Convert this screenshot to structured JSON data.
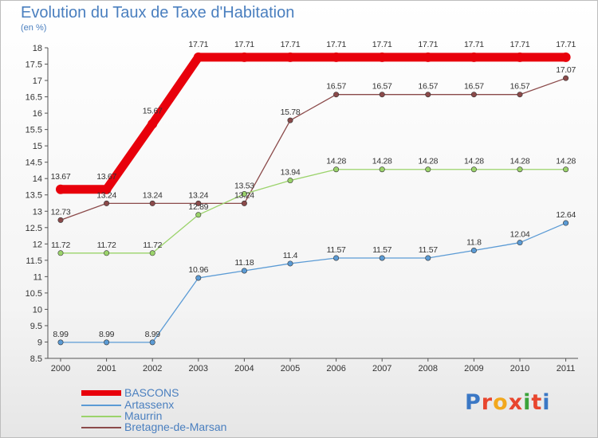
{
  "title": "Evolution du Taux de Taxe d'Habitation",
  "subtitle": "(en %)",
  "logo": {
    "text": "Proxiti",
    "colors": [
      "#3b78c5",
      "#e8462e",
      "#f2a81d",
      "#e8462e",
      "#3aa33a",
      "#e8462e",
      "#3b78c5"
    ]
  },
  "chart_data": {
    "type": "line",
    "x": [
      "2000",
      "2001",
      "2002",
      "2003",
      "2004",
      "2005",
      "2006",
      "2007",
      "2008",
      "2009",
      "2010",
      "2011"
    ],
    "ylim": [
      8.5,
      18
    ],
    "yticks": [
      "8.5",
      "9",
      "9.5",
      "10",
      "10.5",
      "11",
      "11.5",
      "12",
      "12.5",
      "13",
      "13.5",
      "14",
      "14.5",
      "15",
      "15.5",
      "16",
      "16.5",
      "17",
      "17.5",
      "18"
    ],
    "grid": false,
    "legend_position": "bottom-left",
    "series": [
      {
        "name": "BASCONS",
        "color": "#e8000b",
        "values": [
          13.67,
          13.67,
          15.67,
          17.71,
          17.71,
          17.71,
          17.71,
          17.71,
          17.71,
          17.71,
          17.71,
          17.71
        ],
        "labels": [
          "13.67",
          "13.67",
          "15.67",
          "17.71",
          "17.71",
          "17.71",
          "17.71",
          "17.71",
          "17.71",
          "17.71",
          "17.71",
          "17.71"
        ]
      },
      {
        "name": "Artassenx",
        "color": "#5b9bd5",
        "values": [
          8.99,
          8.99,
          8.99,
          10.96,
          11.18,
          11.4,
          11.57,
          11.57,
          11.57,
          11.8,
          12.04,
          12.64
        ],
        "labels": [
          "8.99",
          "8.99",
          "8.99",
          "10.96",
          "11.18",
          "11.4",
          "11.57",
          "11.57",
          "11.57",
          "11.8",
          "12.04",
          "12.64"
        ]
      },
      {
        "name": "Maurrin",
        "color": "#9bd36b",
        "values": [
          11.72,
          11.72,
          11.72,
          12.89,
          13.53,
          13.94,
          14.28,
          14.28,
          14.28,
          14.28,
          14.28,
          14.28
        ],
        "labels": [
          "11.72",
          "11.72",
          "11.72",
          "12.89",
          "13.53",
          "13.94",
          "14.28",
          "14.28",
          "14.28",
          "14.28",
          "14.28",
          "14.28"
        ]
      },
      {
        "name": "Bretagne-de-Marsan",
        "color": "#8b4a4a",
        "values": [
          12.73,
          13.24,
          13.24,
          13.24,
          13.24,
          15.78,
          16.57,
          16.57,
          16.57,
          16.57,
          16.57,
          17.07
        ],
        "labels": [
          "12.73",
          "13.24",
          "13.24",
          "13.24",
          "13.24",
          "15.78",
          "16.57",
          "16.57",
          "16.57",
          "16.57",
          "16.57",
          "17.07"
        ]
      }
    ]
  }
}
